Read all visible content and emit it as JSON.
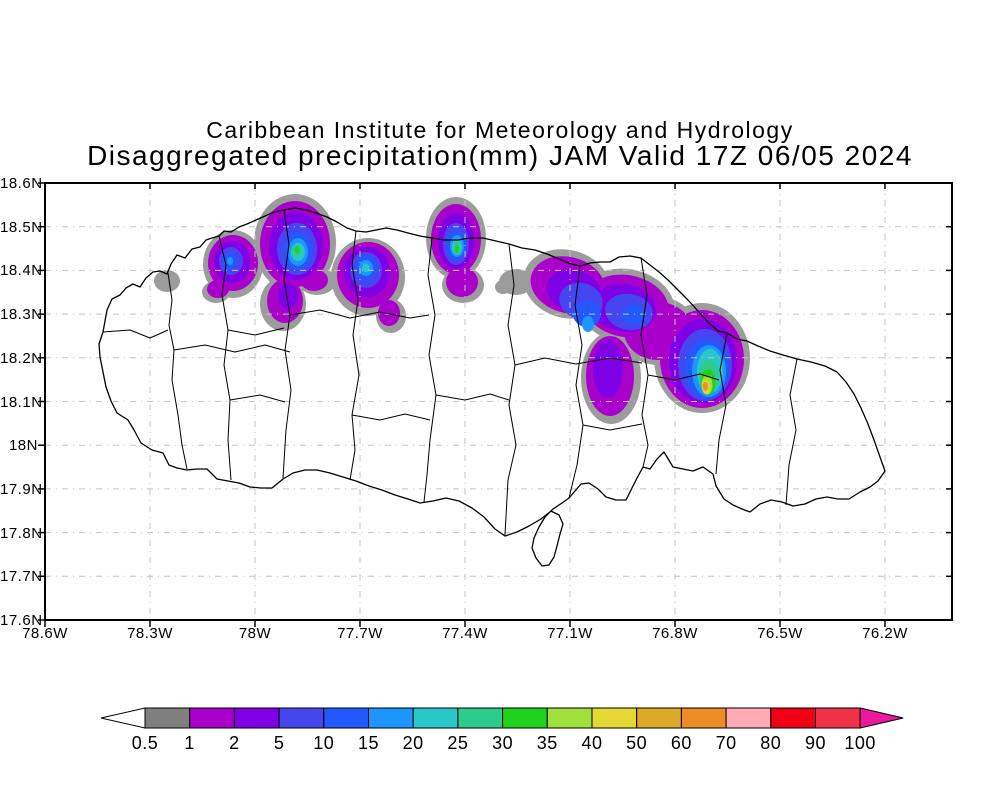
{
  "title": {
    "line1": "Caribbean Institute for Meteorology and Hydrology",
    "line2": "Disaggregated precipitation(mm) JAM Valid 17Z 06/05 2024"
  },
  "axes": {
    "y_labels": [
      "18.6N",
      "18.5N",
      "18.4N",
      "18.3N",
      "18.2N",
      "18.1N",
      "18N",
      "17.9N",
      "17.8N",
      "17.7N",
      "17.6N"
    ],
    "x_labels": [
      "78.6W",
      "78.3W",
      "78W",
      "77.7W",
      "77.4W",
      "77.1W",
      "76.8W",
      "76.5W",
      "76.2W"
    ]
  },
  "colorbar": {
    "labels": [
      "0.5",
      "1",
      "2",
      "5",
      "10",
      "15",
      "20",
      "25",
      "30",
      "35",
      "40",
      "50",
      "60",
      "70",
      "80",
      "90",
      "100"
    ],
    "segment_colors": [
      "#7f7f7f",
      "#aa00cc",
      "#8000e6",
      "#4646f0",
      "#2358ff",
      "#1e96ff",
      "#28c8c8",
      "#2ecc8c",
      "#1ed21e",
      "#a0e03c",
      "#e6d832",
      "#dcaa28",
      "#ee8c28",
      "#ffaab4",
      "#f00014",
      "#f03246"
    ],
    "left_arrow_color": "#ffffff",
    "right_arrow_color": "#ee18a0"
  },
  "map_level_fill": {
    "0.5": "#9c9c9c",
    "1": "#aa00cc",
    "2": "#8000e6",
    "5": "#4646f0",
    "10": "#2358ff",
    "15": "#1e96ff",
    "20": "#28c8c8",
    "25": "#2ecc8c",
    "30": "#1ed21e",
    "35": "#a0e03c",
    "40": "#e6d832",
    "50": "#dcaa28",
    "60": "#ee8c28"
  },
  "chart_data": {
    "type": "heatmap",
    "title": "Disaggregated precipitation(mm) JAM Valid 17Z 06/05 2024",
    "subtitle": "Caribbean Institute for Meteorology and Hydrology",
    "units": "mm",
    "region": "Jamaica (JAM)",
    "valid": "17Z 06/05 2024",
    "lat_range": [
      "17.6N",
      "18.6N"
    ],
    "lon_range": [
      "78.6W",
      "76.2W"
    ],
    "lat_ticks": [
      "18.6N",
      "18.5N",
      "18.4N",
      "18.3N",
      "18.2N",
      "18.1N",
      "18N",
      "17.9N",
      "17.8N",
      "17.7N",
      "17.6N"
    ],
    "lon_ticks": [
      "78.6W",
      "78.3W",
      "78W",
      "77.7W",
      "77.4W",
      "77.1W",
      "76.8W",
      "76.5W",
      "76.2W"
    ],
    "contour_levels_mm": [
      0.5,
      1,
      2,
      5,
      10,
      15,
      20,
      25,
      30,
      35,
      40,
      50,
      60,
      70,
      80,
      90,
      100
    ],
    "grid": "dashed 0.1-deg lat / 0.3-deg lon",
    "legend_position": "bottom horizontal colorbar",
    "precip_maxima": [
      {
        "lon": "78.07W",
        "lat": "18.42N",
        "peak_mm": "10-15"
      },
      {
        "lon": "77.88W",
        "lat": "18.45N",
        "peak_mm": "30-35"
      },
      {
        "lon": "77.68W",
        "lat": "18.41N",
        "peak_mm": "20-25"
      },
      {
        "lon": "77.42W",
        "lat": "18.45N",
        "peak_mm": "30-35"
      },
      {
        "lon": "77.05W",
        "lat": "18.28N",
        "peak_mm": "15-20"
      },
      {
        "lon": "76.71W",
        "lat": "18.14N",
        "peak_mm": "60-70"
      }
    ]
  }
}
